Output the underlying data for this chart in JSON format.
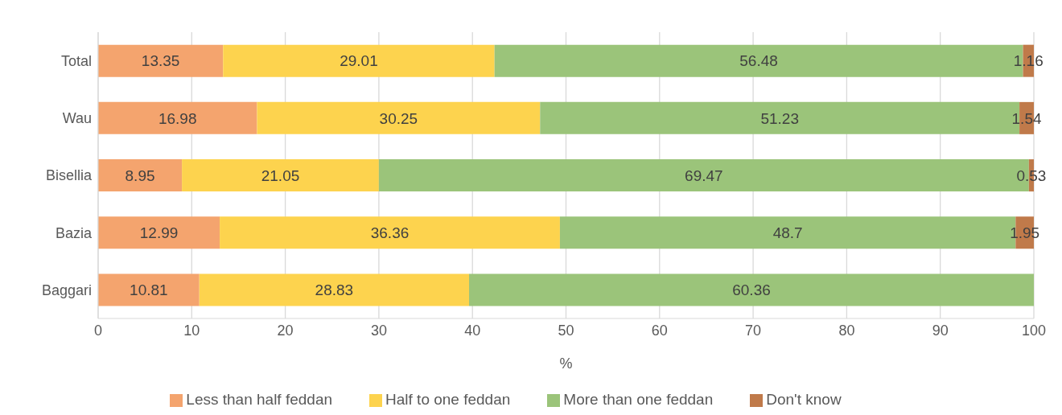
{
  "chart_data": {
    "type": "bar",
    "orientation": "horizontal",
    "stacked": true,
    "xlabel": "%",
    "categories": [
      "Total",
      "Wau",
      "Bisellia",
      "Bazia",
      "Baggari"
    ],
    "series": [
      {
        "name": "Less than half feddan",
        "color": "#f4a46e",
        "values": [
          13.35,
          16.98,
          8.95,
          12.99,
          10.81
        ]
      },
      {
        "name": "Half to one feddan",
        "color": "#fdd34e",
        "values": [
          29.01,
          30.25,
          21.05,
          36.36,
          28.83
        ]
      },
      {
        "name": "More than one feddan",
        "color": "#9bc47a",
        "values": [
          56.48,
          51.23,
          69.47,
          48.7,
          60.36
        ]
      },
      {
        "name": "Don't know",
        "color": "#c07a4a",
        "values": [
          1.16,
          1.54,
          0.53,
          1.95,
          null
        ]
      }
    ],
    "xlim": [
      0,
      100
    ],
    "xticks": [
      0,
      10,
      20,
      30,
      40,
      50,
      60,
      70,
      80,
      90,
      100
    ],
    "grid": "x",
    "data_labels": true,
    "legend": "bottom"
  }
}
